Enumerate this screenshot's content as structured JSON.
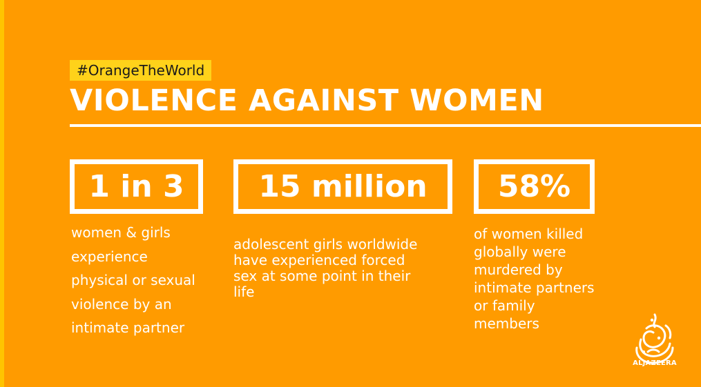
{
  "theme": {
    "background": "#FF9B00",
    "accent_strip": "#FFC400",
    "hashtag_bg": "#FFD21A",
    "text": "#FFFFFF"
  },
  "header": {
    "hashtag": "#OrangeTheWorld",
    "title": "VIOLENCE AGAINST WOMEN"
  },
  "stats": [
    {
      "value": "1 in 3",
      "lines": [
        "women & girls",
        "experience",
        "physical or sexual",
        "violence by an",
        "intimate partner"
      ]
    },
    {
      "value": "15 million",
      "lines": [
        "adolescent girls worldwide",
        "have experienced forced",
        "sex at some point in their",
        "life"
      ]
    },
    {
      "value": "58%",
      "lines": [
        "of women killed",
        "globally were",
        "murdered by",
        "intimate partners",
        "or family",
        "members"
      ]
    }
  ],
  "brand": {
    "name": "ALJAZEERA",
    "logo_icon": "aljazeera-calligraphy-logo-icon"
  }
}
